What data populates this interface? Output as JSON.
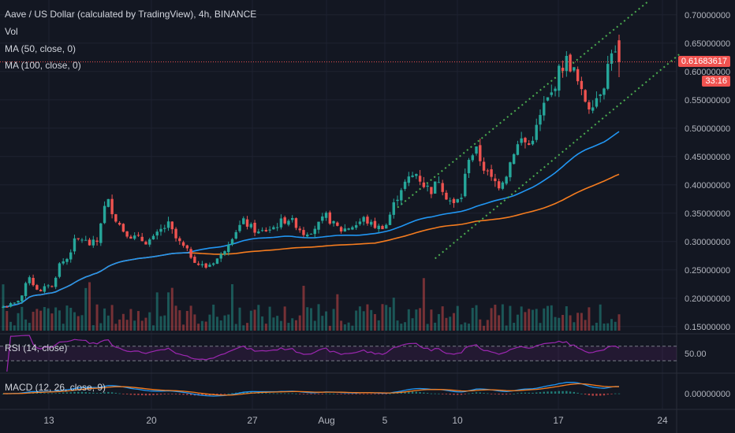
{
  "header": {
    "title": "Aave / US Dollar (calculated by TradingView), 4h, BINANCE",
    "vol_label": "Vol",
    "ma50_label": "MA (50, close, 0)",
    "ma100_label": "MA (100, close, 0)"
  },
  "price_pill": {
    "value": "0.61683617",
    "countdown": "33:16"
  },
  "rsi_pane": {
    "label": "RSI (14, close)",
    "tick": "50.00"
  },
  "macd_pane": {
    "label": "MACD (12, 26, close, 9)",
    "tick": "0.00000000"
  },
  "colors": {
    "up": "#26a69a",
    "down": "#ef5350",
    "ma50": "#2196f3",
    "ma100": "#f57c1f",
    "channel": "#4caf50",
    "rsi": "#9c27b0",
    "background": "#131722"
  },
  "chart_data": {
    "type": "candlestick",
    "price_axis_ticks": [
      "0.70000000",
      "0.65000000",
      "0.60000000",
      "0.55000000",
      "0.50000000",
      "0.45000000",
      "0.40000000",
      "0.35000000",
      "0.30000000",
      "0.25000000",
      "0.20000000",
      "0.15000000"
    ],
    "price_axis_values": [
      0.7,
      0.65,
      0.6,
      0.55,
      0.5,
      0.45,
      0.4,
      0.35,
      0.3,
      0.25,
      0.2,
      0.15
    ],
    "time_axis_labels": [
      "13",
      "20",
      "27",
      "Aug",
      "5",
      "10",
      "17",
      "24"
    ],
    "ylim": [
      0.14,
      0.715
    ],
    "last_price": 0.61683617,
    "close_path": [
      [
        0,
        0.185
      ],
      [
        3,
        0.19
      ],
      [
        5,
        0.205
      ],
      [
        7,
        0.24
      ],
      [
        8,
        0.225
      ],
      [
        10,
        0.21
      ],
      [
        12,
        0.225
      ],
      [
        13,
        0.22
      ],
      [
        15,
        0.26
      ],
      [
        17,
        0.27
      ],
      [
        19,
        0.3
      ],
      [
        21,
        0.305
      ],
      [
        23,
        0.295
      ],
      [
        25,
        0.3
      ],
      [
        26,
        0.335
      ],
      [
        27,
        0.36
      ],
      [
        28,
        0.37
      ],
      [
        30,
        0.34
      ],
      [
        32,
        0.32
      ],
      [
        34,
        0.31
      ],
      [
        36,
        0.305
      ],
      [
        38,
        0.3
      ],
      [
        40,
        0.305
      ],
      [
        42,
        0.32
      ],
      [
        44,
        0.33
      ],
      [
        46,
        0.305
      ],
      [
        48,
        0.29
      ],
      [
        50,
        0.275
      ],
      [
        52,
        0.26
      ],
      [
        54,
        0.255
      ],
      [
        56,
        0.265
      ],
      [
        58,
        0.275
      ],
      [
        60,
        0.3
      ],
      [
        62,
        0.32
      ],
      [
        64,
        0.335
      ],
      [
        66,
        0.325
      ],
      [
        68,
        0.315
      ],
      [
        70,
        0.32
      ],
      [
        72,
        0.325
      ],
      [
        74,
        0.335
      ],
      [
        76,
        0.34
      ],
      [
        78,
        0.33
      ],
      [
        80,
        0.315
      ],
      [
        82,
        0.32
      ],
      [
        84,
        0.33
      ],
      [
        86,
        0.345
      ],
      [
        88,
        0.33
      ],
      [
        90,
        0.32
      ],
      [
        92,
        0.325
      ],
      [
        94,
        0.33
      ],
      [
        96,
        0.34
      ],
      [
        98,
        0.33
      ],
      [
        100,
        0.325
      ],
      [
        102,
        0.33
      ],
      [
        104,
        0.365
      ],
      [
        106,
        0.395
      ],
      [
        108,
        0.41
      ],
      [
        110,
        0.42
      ],
      [
        112,
        0.4
      ],
      [
        114,
        0.39
      ],
      [
        116,
        0.41
      ],
      [
        118,
        0.38
      ],
      [
        120,
        0.365
      ],
      [
        122,
        0.38
      ],
      [
        124,
        0.45
      ],
      [
        126,
        0.46
      ],
      [
        128,
        0.43
      ],
      [
        130,
        0.41
      ],
      [
        132,
        0.4
      ],
      [
        134,
        0.42
      ],
      [
        136,
        0.46
      ],
      [
        138,
        0.48
      ],
      [
        140,
        0.47
      ],
      [
        142,
        0.5
      ],
      [
        144,
        0.54
      ],
      [
        146,
        0.56
      ],
      [
        148,
        0.6
      ],
      [
        150,
        0.62
      ],
      [
        152,
        0.6
      ],
      [
        154,
        0.56
      ],
      [
        156,
        0.54
      ],
      [
        158,
        0.555
      ],
      [
        160,
        0.58
      ],
      [
        162,
        0.64
      ],
      [
        164,
        0.617
      ]
    ],
    "candle_count": 165,
    "series": [
      {
        "name": "MA (50, close, 0)",
        "type": "line"
      },
      {
        "name": "MA (100, close, 0)",
        "type": "line"
      }
    ],
    "channel": {
      "upper": [
        [
          105,
          0.36
        ],
        [
          172,
          0.725
        ]
      ],
      "lower": [
        [
          115,
          0.27
        ],
        [
          180,
          0.63
        ]
      ]
    },
    "rsi": {
      "upper_band": 70,
      "lower_band": 30,
      "tick": 50
    },
    "macd": {
      "zero_tick": 0
    }
  }
}
